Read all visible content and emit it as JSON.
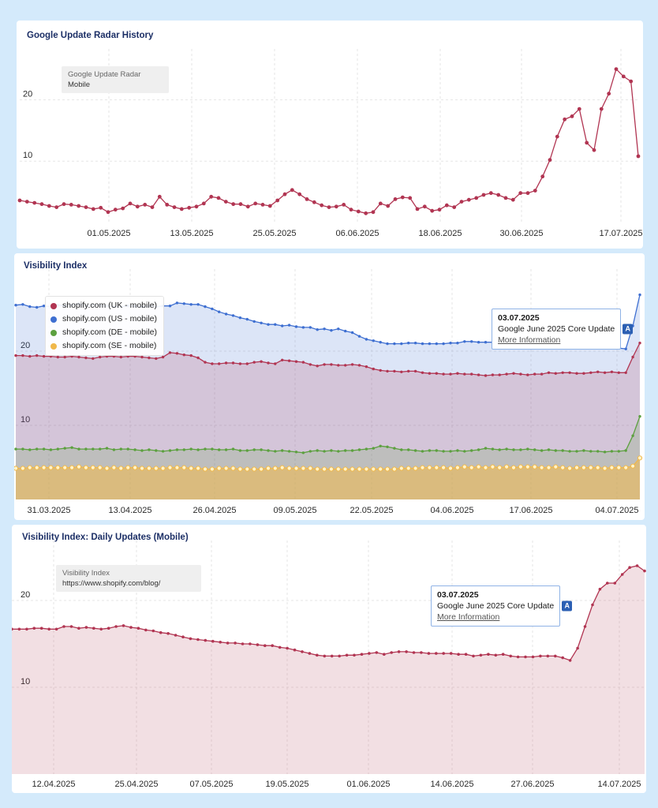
{
  "charts": [
    {
      "title": "Google Update Radar History",
      "info_label": "Google Update Radar",
      "info_value": "Mobile"
    },
    {
      "title": "Visibility Index",
      "tooltip": {
        "date": "03.07.2025",
        "event": "Google June 2025 Core Update",
        "link": "More Information",
        "badge": "A"
      }
    },
    {
      "title": "Visibility Index: Daily Updates (Mobile)",
      "info_label": "Visibility Index",
      "info_value": "https://www.shopify.com/blog/",
      "tooltip": {
        "date": "03.07.2025",
        "event": "Google June 2025 Core Update",
        "link": "More Information",
        "badge": "A"
      }
    }
  ],
  "chart_data": [
    {
      "type": "line",
      "title": "Google Update Radar History",
      "x_ticks": [
        "01.05.2025",
        "13.05.2025",
        "25.05.2025",
        "06.06.2025",
        "18.06.2025",
        "30.06.2025",
        "17.07.2025"
      ],
      "y_ticks": [
        10,
        20
      ],
      "ylim": [
        0,
        27
      ],
      "grid": true,
      "series": [
        {
          "name": "Mobile",
          "color": "#b13552",
          "values": [
            3.6,
            3.4,
            3.2,
            3.0,
            2.7,
            2.5,
            3.0,
            2.9,
            2.7,
            2.5,
            2.2,
            2.4,
            1.7,
            2.1,
            2.3,
            3.1,
            2.6,
            2.9,
            2.5,
            4.2,
            2.9,
            2.5,
            2.2,
            2.4,
            2.6,
            3.1,
            4.2,
            4.0,
            3.4,
            3.0,
            3.0,
            2.6,
            3.1,
            2.9,
            2.7,
            3.6,
            4.6,
            5.3,
            4.6,
            3.8,
            3.3,
            2.8,
            2.5,
            2.6,
            2.9,
            2.1,
            1.8,
            1.5,
            1.7,
            3.1,
            2.7,
            3.8,
            4.1,
            4.0,
            2.2,
            2.6,
            1.9,
            2.1,
            2.8,
            2.5,
            3.4,
            3.7,
            4.0,
            4.5,
            4.8,
            4.5,
            4.0,
            3.7,
            4.8,
            4.8,
            5.2,
            7.5,
            10.2,
            14.0,
            16.8,
            17.3,
            18.5,
            13.0,
            11.8,
            18.5,
            21.0,
            25.0,
            23.8,
            23.0,
            10.8
          ]
        }
      ]
    },
    {
      "type": "area",
      "title": "Visibility Index",
      "x_ticks": [
        "31.03.2025",
        "13.04.2025",
        "26.04.2025",
        "09.05.2025",
        "22.05.2025",
        "04.06.2025",
        "17.06.2025",
        "04.07.2025"
      ],
      "y_ticks": [
        10,
        20
      ],
      "ylim": [
        0,
        30
      ],
      "grid": true,
      "legend": "top-left",
      "series": [
        {
          "name": "shopify.com (UK - mobile)",
          "color": "#b13552",
          "values": [
            19.4,
            19.4,
            19.3,
            19.4,
            19.3,
            19.3,
            19.2,
            19.2,
            19.3,
            19.2,
            19.1,
            19.0,
            19.2,
            19.3,
            19.3,
            19.2,
            19.3,
            19.3,
            19.2,
            19.1,
            19.0,
            19.2,
            19.8,
            19.7,
            19.5,
            19.4,
            19.1,
            18.5,
            18.3,
            18.3,
            18.4,
            18.4,
            18.3,
            18.3,
            18.5,
            18.6,
            18.4,
            18.3,
            18.8,
            18.7,
            18.6,
            18.5,
            18.2,
            18.0,
            18.2,
            18.2,
            18.1,
            18.1,
            18.2,
            18.1,
            17.9,
            17.6,
            17.4,
            17.3,
            17.3,
            17.2,
            17.3,
            17.3,
            17.1,
            17.0,
            17.0,
            16.9,
            16.9,
            17.0,
            16.9,
            16.9,
            16.8,
            16.7,
            16.8,
            16.8,
            16.9,
            17.0,
            16.9,
            16.8,
            16.9,
            16.9,
            17.1,
            17.0,
            17.1,
            17.1,
            17.0,
            17.0,
            17.1,
            17.2,
            17.1,
            17.2,
            17.1,
            17.1,
            19.2,
            21.1
          ]
        },
        {
          "name": "shopify.com (US - mobile)",
          "color": "#3e6fd1",
          "values": [
            26.2,
            26.3,
            26.0,
            25.9,
            26.1,
            26.0,
            26.2,
            26.1,
            26.2,
            26.4,
            26.1,
            26.2,
            26.2,
            26.1,
            26.0,
            26.0,
            26.1,
            26.1,
            26.0,
            26.1,
            26.0,
            26.1,
            26.1,
            26.5,
            26.4,
            26.3,
            26.3,
            26.0,
            25.7,
            25.3,
            25.0,
            24.8,
            24.5,
            24.3,
            24.0,
            23.8,
            23.6,
            23.6,
            23.4,
            23.5,
            23.3,
            23.2,
            23.2,
            22.9,
            23.0,
            22.8,
            23.0,
            22.7,
            22.5,
            22.0,
            21.6,
            21.4,
            21.2,
            21.0,
            21.0,
            21.0,
            21.1,
            21.1,
            21.0,
            21.0,
            21.0,
            21.0,
            21.1,
            21.1,
            21.3,
            21.3,
            21.2,
            21.2,
            21.2,
            21.1,
            21.1,
            21.1,
            21.0,
            21.0,
            21.0,
            21.0,
            20.9,
            21.0,
            20.9,
            20.8,
            20.8,
            20.5,
            20.5,
            20.4,
            20.4,
            20.4,
            20.4,
            20.3,
            23.4,
            27.6
          ]
        },
        {
          "name": "shopify.com (DE - mobile)",
          "color": "#5ca03f",
          "values": [
            6.8,
            6.8,
            6.7,
            6.8,
            6.8,
            6.7,
            6.8,
            6.9,
            7.0,
            6.8,
            6.8,
            6.8,
            6.8,
            6.9,
            6.7,
            6.8,
            6.8,
            6.7,
            6.6,
            6.7,
            6.6,
            6.5,
            6.6,
            6.7,
            6.7,
            6.8,
            6.7,
            6.8,
            6.8,
            6.7,
            6.7,
            6.8,
            6.6,
            6.6,
            6.7,
            6.7,
            6.6,
            6.5,
            6.6,
            6.5,
            6.4,
            6.3,
            6.5,
            6.6,
            6.5,
            6.6,
            6.5,
            6.6,
            6.6,
            6.7,
            6.8,
            6.9,
            7.2,
            7.1,
            6.9,
            6.7,
            6.7,
            6.6,
            6.5,
            6.6,
            6.6,
            6.5,
            6.5,
            6.6,
            6.5,
            6.6,
            6.7,
            6.9,
            6.8,
            6.7,
            6.8,
            6.7,
            6.7,
            6.8,
            6.7,
            6.6,
            6.7,
            6.6,
            6.6,
            6.5,
            6.5,
            6.6,
            6.5,
            6.5,
            6.4,
            6.5,
            6.5,
            6.6,
            8.6,
            11.2
          ]
        },
        {
          "name": "shopify.com (SE - mobile)",
          "color": "#f0b84a",
          "values": [
            4.2,
            4.2,
            4.3,
            4.3,
            4.3,
            4.3,
            4.3,
            4.3,
            4.3,
            4.4,
            4.3,
            4.3,
            4.3,
            4.2,
            4.3,
            4.2,
            4.3,
            4.3,
            4.2,
            4.2,
            4.2,
            4.2,
            4.3,
            4.3,
            4.3,
            4.2,
            4.2,
            4.1,
            4.1,
            4.2,
            4.2,
            4.2,
            4.1,
            4.1,
            4.1,
            4.1,
            4.2,
            4.2,
            4.3,
            4.2,
            4.2,
            4.2,
            4.2,
            4.1,
            4.1,
            4.1,
            4.1,
            4.1,
            4.1,
            4.1,
            4.1,
            4.1,
            4.1,
            4.1,
            4.1,
            4.2,
            4.2,
            4.2,
            4.3,
            4.3,
            4.3,
            4.3,
            4.2,
            4.3,
            4.4,
            4.3,
            4.4,
            4.3,
            4.4,
            4.3,
            4.4,
            4.3,
            4.4,
            4.4,
            4.4,
            4.3,
            4.3,
            4.4,
            4.3,
            4.2,
            4.3,
            4.3,
            4.3,
            4.3,
            4.2,
            4.3,
            4.3,
            4.3,
            4.5,
            5.6
          ]
        }
      ]
    },
    {
      "type": "area",
      "title": "Visibility Index: Daily Updates (Mobile)",
      "x_ticks": [
        "12.04.2025",
        "25.04.2025",
        "07.05.2025",
        "19.05.2025",
        "01.06.2025",
        "14.06.2025",
        "27.06.2025",
        "14.07.2025"
      ],
      "y_ticks": [
        10,
        20
      ],
      "ylim": [
        0,
        26
      ],
      "grid": true,
      "series": [
        {
          "name": "https://www.shopify.com/blog/",
          "color": "#b13552",
          "values": [
            16.7,
            16.7,
            16.7,
            16.8,
            16.8,
            16.7,
            16.7,
            17.0,
            17.0,
            16.8,
            16.9,
            16.8,
            16.7,
            16.8,
            17.0,
            17.1,
            16.9,
            16.8,
            16.6,
            16.5,
            16.3,
            16.2,
            16.0,
            15.8,
            15.6,
            15.5,
            15.4,
            15.3,
            15.2,
            15.1,
            15.1,
            15.0,
            15.0,
            14.9,
            14.8,
            14.8,
            14.6,
            14.5,
            14.3,
            14.1,
            13.9,
            13.7,
            13.6,
            13.6,
            13.6,
            13.7,
            13.7,
            13.8,
            13.9,
            14.0,
            13.8,
            14.0,
            14.1,
            14.1,
            14.0,
            14.0,
            13.9,
            13.9,
            13.9,
            13.9,
            13.8,
            13.8,
            13.6,
            13.7,
            13.8,
            13.7,
            13.8,
            13.6,
            13.5,
            13.5,
            13.5,
            13.6,
            13.6,
            13.6,
            13.4,
            13.1,
            14.5,
            17.0,
            19.5,
            21.3,
            22.0,
            22.0,
            23.0,
            23.8,
            24.0,
            23.4
          ]
        }
      ]
    }
  ]
}
